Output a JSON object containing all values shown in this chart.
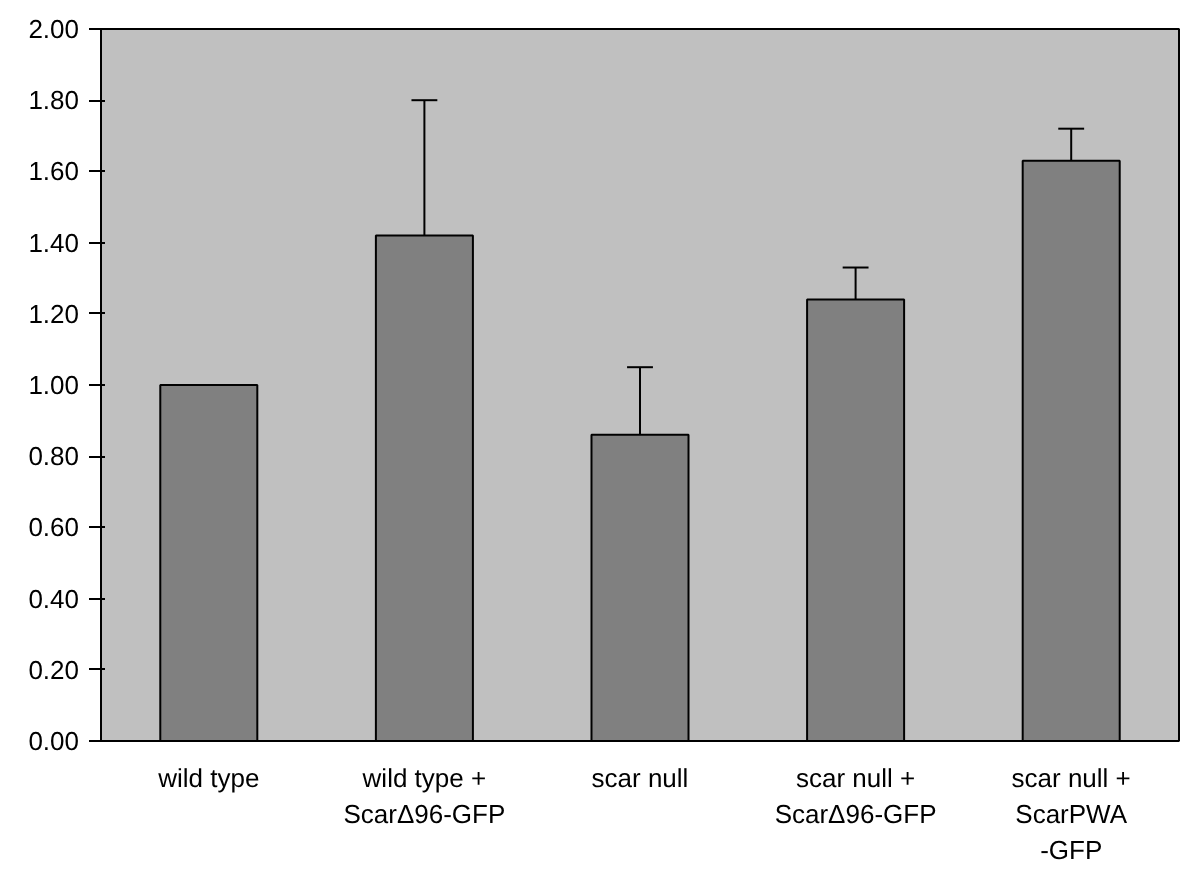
{
  "chart_data": {
    "type": "bar",
    "categories": [
      "wild type",
      "wild type +\nScarΔ96-GFP",
      "scar null",
      "scar null +\nScarΔ96-GFP",
      "scar null +\nScarPWA\n-GFP"
    ],
    "values": [
      1.0,
      1.42,
      0.86,
      1.24,
      1.63
    ],
    "errors": [
      null,
      [
        1.42,
        1.8
      ],
      [
        0.86,
        1.05
      ],
      [
        1.24,
        1.33
      ],
      [
        1.63,
        1.72
      ]
    ],
    "color": "#808080",
    "ylim": [
      0,
      2
    ],
    "yticks": [
      {
        "value": 0,
        "label": "0.00"
      },
      {
        "value": 0.2,
        "label": "0.20"
      },
      {
        "value": 0.4,
        "label": "0.40"
      },
      {
        "value": 0.6,
        "label": "0.60"
      },
      {
        "value": 0.8,
        "label": "0.80"
      },
      {
        "value": 1.0,
        "label": "1.00"
      },
      {
        "value": 1.2,
        "label": "1.20"
      },
      {
        "value": 1.4,
        "label": "1.40"
      },
      {
        "value": 1.6,
        "label": "1.60"
      },
      {
        "value": 1.8,
        "label": "1.80"
      },
      {
        "value": 2.0,
        "label": "2.00"
      }
    ],
    "grid": false
  }
}
